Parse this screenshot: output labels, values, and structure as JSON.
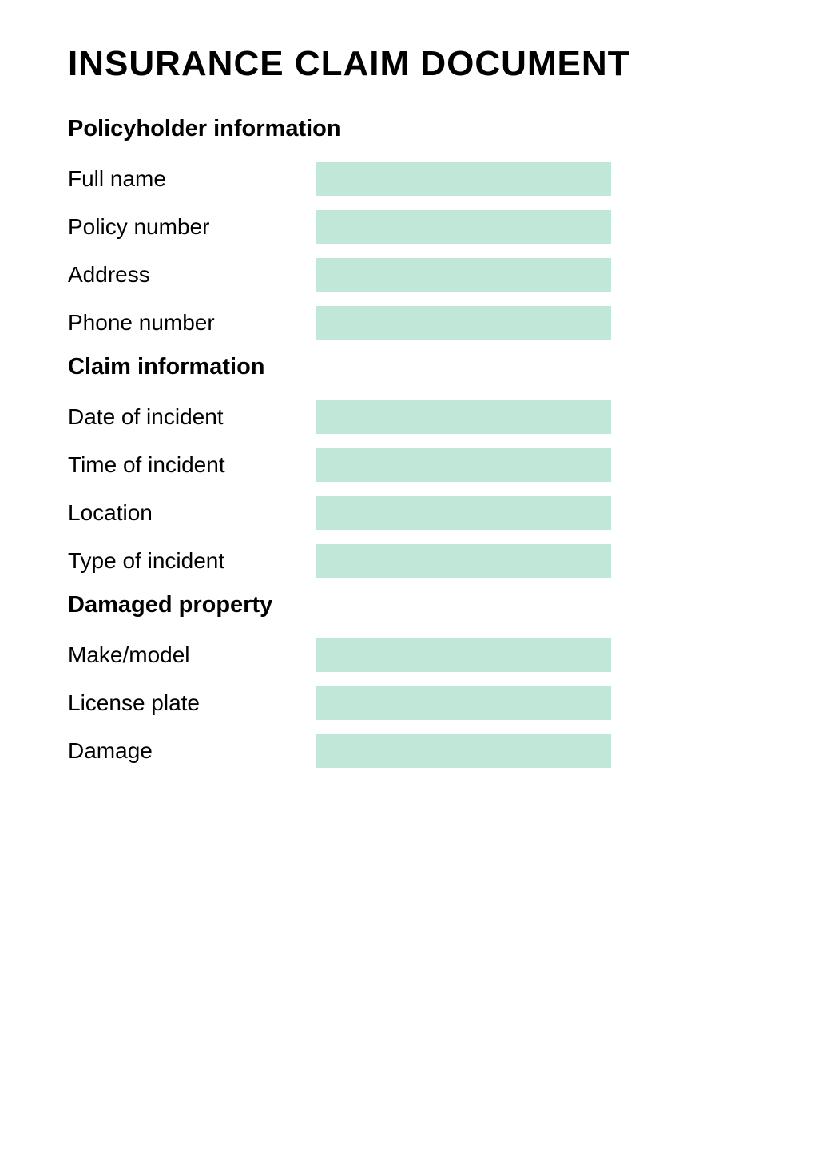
{
  "styling": {
    "input_background_color": "#c1e7d9",
    "text_color": "#000000",
    "background_color": "#ffffff",
    "title_fontsize": 44,
    "section_header_fontsize": 29,
    "label_fontsize": 28,
    "input_height": 42,
    "input_width": 370,
    "label_width": 310
  },
  "title": "INSURANCE CLAIM DOCUMENT",
  "sections": [
    {
      "header": "Policyholder information",
      "fields": [
        {
          "label": "Full name",
          "value": ""
        },
        {
          "label": "Policy number",
          "value": ""
        },
        {
          "label": "Address",
          "value": ""
        },
        {
          "label": "Phone number",
          "value": ""
        }
      ]
    },
    {
      "header": "Claim information",
      "fields": [
        {
          "label": "Date of incident",
          "value": ""
        },
        {
          "label": "Time of incident",
          "value": ""
        },
        {
          "label": "Location",
          "value": ""
        },
        {
          "label": "Type of incident",
          "value": ""
        }
      ]
    },
    {
      "header": "Damaged property",
      "fields": [
        {
          "label": "Make/model",
          "value": ""
        },
        {
          "label": "License plate",
          "value": ""
        },
        {
          "label": "Damage",
          "value": ""
        }
      ]
    }
  ]
}
